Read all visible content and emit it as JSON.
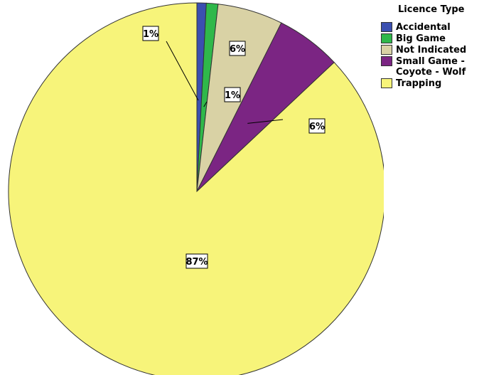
{
  "chart_data": {
    "type": "pie",
    "legend_title": "Licence Type",
    "legend_position": "top-right",
    "start_angle_deg": 0,
    "direction": "clockwise",
    "slices": [
      {
        "category": "Accidental",
        "value": 0.8,
        "color": "#3b4fb0",
        "label": ""
      },
      {
        "category": "Big Game",
        "value": 1.0,
        "color": "#2fb84a",
        "label": "1%"
      },
      {
        "category": "Not Indicated",
        "value": 5.6,
        "color": "#d9d2a5",
        "label": "6%"
      },
      {
        "category": "Small Game -\nCoyote - Wolf",
        "value": 5.6,
        "color": "#7b2583",
        "label": "6%"
      },
      {
        "category": "Trapping",
        "value": 87.0,
        "color": "#f7f47a",
        "label": "87%"
      }
    ],
    "extra_labels": [
      {
        "slice": "Accidental",
        "label": "1%"
      }
    ]
  }
}
